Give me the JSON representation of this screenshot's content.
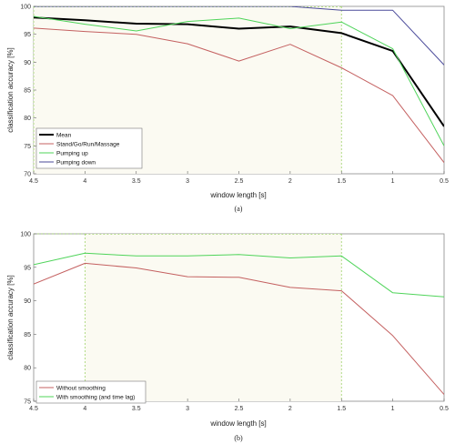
{
  "chart_data": [
    {
      "type": "line",
      "caption": "(a)",
      "xlabel": "window length [s]",
      "ylabel": "classification accuracy [%]",
      "xlim": [
        4.5,
        0.5
      ],
      "ylim": [
        70,
        100
      ],
      "x_reversed": true,
      "xticks": [
        4.5,
        4,
        3.5,
        3,
        2.5,
        2,
        1.5,
        1,
        0.5
      ],
      "xtick_labels": [
        "4.5",
        "4",
        "3.5",
        "3",
        "2.5",
        "2",
        "1.5",
        "1",
        "0.5"
      ],
      "yticks": [
        70,
        75,
        80,
        85,
        90,
        95,
        100
      ],
      "ytick_labels": [
        "70",
        "75",
        "80",
        "85",
        "90",
        "95",
        "100"
      ],
      "x": [
        4.5,
        4,
        3.5,
        3,
        2.5,
        2,
        1.5,
        1,
        0.5
      ],
      "legend_position": "bottom-left",
      "grid": false,
      "highlight_range": [
        1.5,
        4.5
      ],
      "series": [
        {
          "name": "Mean",
          "color": "#000000",
          "width": 2.0,
          "values": [
            98.0,
            97.5,
            96.9,
            96.8,
            96.0,
            96.4,
            95.2,
            92.0,
            78.5
          ]
        },
        {
          "name": "Stand/Go/Run/Massage",
          "color": "#c46060",
          "width": 1.0,
          "values": [
            96.1,
            95.5,
            95.0,
            93.3,
            90.2,
            93.2,
            89.0,
            84.0,
            72.0
          ]
        },
        {
          "name": "Pumping up",
          "color": "#4fd45a",
          "width": 1.0,
          "values": [
            98.2,
            96.8,
            95.6,
            97.3,
            97.9,
            96.0,
            97.2,
            92.4,
            75.0
          ]
        },
        {
          "name": "Pumping down",
          "color": "#4a4a9a",
          "width": 1.0,
          "values": [
            100,
            100,
            100,
            100,
            100,
            100,
            99.3,
            99.3,
            89.5
          ]
        }
      ]
    },
    {
      "type": "line",
      "caption": "(b)",
      "xlabel": "window length [s]",
      "ylabel": "classification accuracy [%]",
      "xlim": [
        4.5,
        0.5
      ],
      "ylim": [
        75,
        100
      ],
      "x_reversed": true,
      "xticks": [
        4.5,
        4,
        3.5,
        3,
        2.5,
        2,
        1.5,
        1,
        0.5
      ],
      "xtick_labels": [
        "4.5",
        "4",
        "3.5",
        "3",
        "2.5",
        "2",
        "1.5",
        "1",
        "0.5"
      ],
      "yticks": [
        75,
        80,
        85,
        90,
        95,
        100
      ],
      "ytick_labels": [
        "75",
        "80",
        "85",
        "90",
        "95",
        "100"
      ],
      "x": [
        4.5,
        4,
        3.5,
        3,
        2.5,
        2,
        1.5,
        1,
        0.5
      ],
      "legend_position": "bottom-left",
      "grid": false,
      "highlight_range": [
        1.5,
        4
      ],
      "series": [
        {
          "name": "Without smoothing",
          "color": "#c46060",
          "width": 1.0,
          "values": [
            92.5,
            95.6,
            94.9,
            93.6,
            93.5,
            92.0,
            91.5,
            84.8,
            76.0
          ]
        },
        {
          "name": "With smoothing (and time lag)",
          "color": "#4fd45a",
          "width": 1.0,
          "values": [
            95.4,
            97.1,
            96.7,
            96.7,
            96.9,
            96.4,
            96.7,
            91.2,
            90.6
          ]
        }
      ]
    }
  ]
}
